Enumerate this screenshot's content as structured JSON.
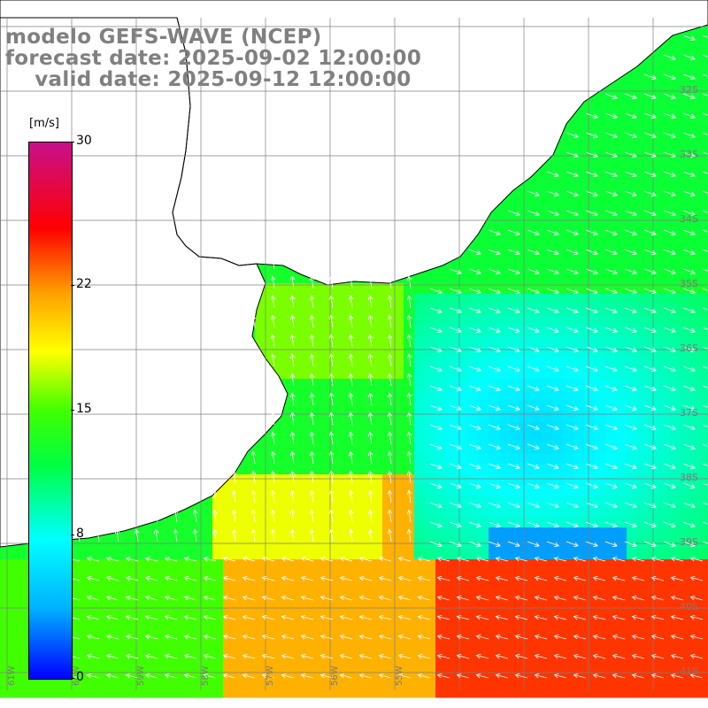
{
  "title": {
    "line1": "modelo GEFS-WAVE (NCEP)",
    "line2": "forecast date: 2025-09-02 12:00:00",
    "line3": "    valid date: 2025-09-12 12:00:00"
  },
  "colorbar": {
    "unit": "[m/s]",
    "ticks": [
      {
        "label": "30",
        "value": 30
      },
      {
        "label": "22",
        "value": 22
      },
      {
        "label": "15",
        "value": 15
      },
      {
        "label": "8",
        "value": 8
      },
      {
        "label": "0",
        "value": 0
      }
    ],
    "colors": [
      "#0000ff",
      "#00b0ff",
      "#00ffff",
      "#00ff40",
      "#40ff00",
      "#ffff00",
      "#ffa000",
      "#ff0000",
      "#c8108a"
    ]
  },
  "lat_labels": [
    "32S",
    "33S",
    "34S",
    "35S",
    "36S",
    "37S",
    "38S",
    "39S",
    "40S",
    "41S"
  ],
  "lon_labels": [
    "61W",
    "60W",
    "59W",
    "58W",
    "57W",
    "56W",
    "55W"
  ],
  "map": {
    "region": "Rio de la Plata / Uruguay / Buenos Aires coast",
    "field": "wind speed"
  }
}
